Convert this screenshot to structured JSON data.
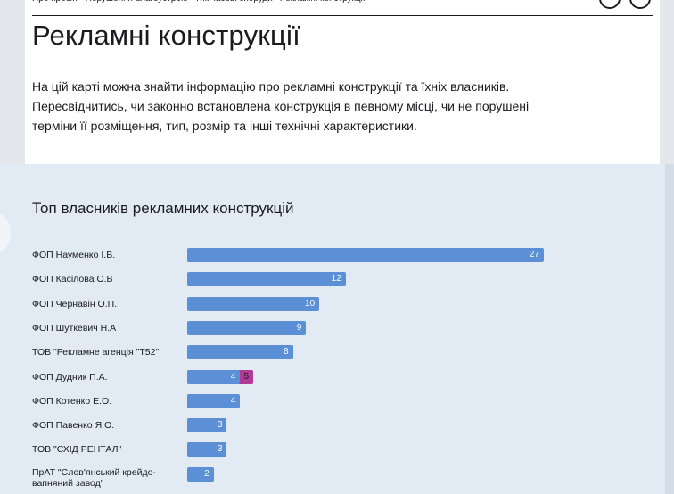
{
  "header": {
    "nav": [
      "Про проєкт",
      "Порушення благоустрою",
      "Тимчасові споруди",
      "Рекламні конструкції"
    ],
    "title": "Рекламні конструкції",
    "description": "На цій карті можна знайти інформацію про рекламні конструкції та їхніх власників. Пересвідчитись, чи законно встановлена конструкція в певному місці, чи не порушені терміни її розміщення, тип, розмір та інші технічні характеристики."
  },
  "chart_data": {
    "type": "bar",
    "orientation": "horizontal",
    "title": "Топ власників рекламних конструкцій",
    "categories": [
      "ФОП Науменко І.В.",
      "ФОП Касілова О.В",
      "ФОП Чернавін О.П.",
      "ФОП Шуткевич Н.А",
      "ТОВ \"Рекламне агенція \"Т52\"",
      "ФОП Дудник П.А.",
      "ФОП Котенко Е.О.",
      "ФОП Павенко Я.О.",
      "ТОВ \"СХІД РЕНТАЛ\"",
      "ПрАТ \"Слов'янський крейдо-вапняний завод\""
    ],
    "series": [
      {
        "color": "#5b8fd6",
        "values": [
          27,
          12,
          10,
          9,
          8,
          4,
          4,
          3,
          3,
          2
        ]
      },
      {
        "color": "#b03a96",
        "values": [
          null,
          null,
          null,
          null,
          null,
          5,
          null,
          null,
          null,
          null
        ]
      }
    ]
  }
}
